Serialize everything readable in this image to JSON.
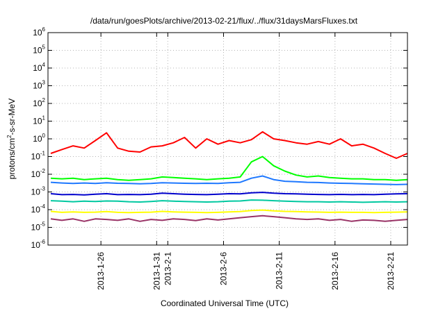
{
  "chart_data": {
    "type": "line",
    "title": "/data/run/goesPlots/archive/2013-02-21/flux/../flux/31daysMarsFluxes.txt",
    "xlabel": "Coordinated Universal Time (UTC)",
    "ylabel": {
      "prefix": "protons/cm",
      "sup": "2",
      "suffix": "-s-sr-MeV"
    },
    "y_scale": "log",
    "ylim": [
      1e-06,
      1000000.0
    ],
    "y_ticks": [
      {
        "value": 1e-06,
        "base": "10",
        "exp": "-6"
      },
      {
        "value": 1e-05,
        "base": "10",
        "exp": "-5"
      },
      {
        "value": 0.0001,
        "base": "10",
        "exp": "-4"
      },
      {
        "value": 0.001,
        "base": "10",
        "exp": "-3"
      },
      {
        "value": 0.01,
        "base": "10",
        "exp": "-2"
      },
      {
        "value": 0.1,
        "base": "10",
        "exp": "-1"
      },
      {
        "value": 1,
        "base": "10",
        "exp": "0"
      },
      {
        "value": 10,
        "base": "10",
        "exp": "1"
      },
      {
        "value": 100,
        "base": "10",
        "exp": "2"
      },
      {
        "value": 1000,
        "base": "10",
        "exp": "3"
      },
      {
        "value": 10000,
        "base": "10",
        "exp": "4"
      },
      {
        "value": 100000,
        "base": "10",
        "exp": "5"
      },
      {
        "value": 1000000,
        "base": "10",
        "exp": "6"
      }
    ],
    "x_scale": "time",
    "xlim": [
      "2013-01-21T06:00",
      "2013-02-22T12:00"
    ],
    "x_ticks": [
      {
        "value": "2013-01-26",
        "label": "2013-1-26"
      },
      {
        "value": "2013-01-31",
        "label": "2013-1-31"
      },
      {
        "value": "2013-02-01",
        "label": "2013-2-1"
      },
      {
        "value": "2013-02-06",
        "label": "2013-2-6"
      },
      {
        "value": "2013-02-11",
        "label": "2013-2-11"
      },
      {
        "value": "2013-02-16",
        "label": "2013-2-16"
      },
      {
        "value": "2013-02-21",
        "label": "2013-2-21"
      }
    ],
    "grid": true,
    "x": [
      "2013-01-21T12:00",
      "2013-01-22T12:00",
      "2013-01-23T12:00",
      "2013-01-24T12:00",
      "2013-01-25T12:00",
      "2013-01-26T12:00",
      "2013-01-27T12:00",
      "2013-01-28T12:00",
      "2013-01-29T12:00",
      "2013-01-30T12:00",
      "2013-01-31T12:00",
      "2013-02-01T12:00",
      "2013-02-02T12:00",
      "2013-02-03T12:00",
      "2013-02-04T12:00",
      "2013-02-05T12:00",
      "2013-02-06T12:00",
      "2013-02-07T12:00",
      "2013-02-08T12:00",
      "2013-02-09T12:00",
      "2013-02-10T12:00",
      "2013-02-11T12:00",
      "2013-02-12T12:00",
      "2013-02-13T12:00",
      "2013-02-14T12:00",
      "2013-02-15T12:00",
      "2013-02-16T12:00",
      "2013-02-17T12:00",
      "2013-02-18T12:00",
      "2013-02-19T12:00",
      "2013-02-20T12:00",
      "2013-02-21T12:00",
      "2013-02-22T12:00"
    ],
    "series": [
      {
        "color": "#ff0000",
        "values": [
          0.15,
          0.25,
          0.4,
          0.3,
          0.8,
          2.2,
          0.3,
          0.2,
          0.18,
          0.35,
          0.4,
          0.6,
          1.2,
          0.3,
          1.0,
          0.5,
          0.8,
          0.6,
          0.9,
          2.5,
          1.0,
          0.8,
          0.6,
          0.5,
          0.7,
          0.5,
          1.0,
          0.4,
          0.5,
          0.3,
          0.15,
          0.08,
          0.15
        ]
      },
      {
        "color": "#00ff00",
        "values": [
          0.006,
          0.0055,
          0.006,
          0.005,
          0.0055,
          0.006,
          0.005,
          0.0045,
          0.005,
          0.0055,
          0.007,
          0.0065,
          0.006,
          0.0055,
          0.005,
          0.0055,
          0.006,
          0.007,
          0.05,
          0.1,
          0.03,
          0.015,
          0.009,
          0.007,
          0.008,
          0.0065,
          0.006,
          0.0055,
          0.0055,
          0.005,
          0.005,
          0.0045,
          0.005
        ]
      },
      {
        "color": "#1e78ff",
        "values": [
          0.0035,
          0.0032,
          0.003,
          0.0032,
          0.003,
          0.0033,
          0.0031,
          0.003,
          0.0029,
          0.003,
          0.0033,
          0.0032,
          0.0031,
          0.003,
          0.0031,
          0.003,
          0.0033,
          0.0035,
          0.006,
          0.008,
          0.005,
          0.004,
          0.0038,
          0.0035,
          0.0034,
          0.0032,
          0.0031,
          0.003,
          0.0029,
          0.0028,
          0.0027,
          0.0026,
          0.0027
        ]
      },
      {
        "color": "#0000cc",
        "values": [
          0.0008,
          0.0007,
          0.00072,
          0.00068,
          0.00075,
          0.0008,
          0.0007,
          0.00072,
          0.0007,
          0.00075,
          0.00085,
          0.0008,
          0.00075,
          0.00072,
          0.0007,
          0.00075,
          0.0008,
          0.00078,
          0.0009,
          0.00095,
          0.00085,
          0.0008,
          0.00078,
          0.00075,
          0.00072,
          0.0007,
          0.00073,
          0.0007,
          0.00072,
          0.0007,
          0.00075,
          0.00078,
          0.0008
        ]
      },
      {
        "color": "#00c8a0",
        "values": [
          0.00032,
          0.0003,
          0.00028,
          0.0003,
          0.00029,
          0.00031,
          0.0003,
          0.00028,
          0.00027,
          0.00029,
          0.00032,
          0.0003,
          0.00029,
          0.00028,
          0.00027,
          0.00028,
          0.0003,
          0.00031,
          0.00035,
          0.00034,
          0.00032,
          0.0003,
          0.00029,
          0.00028,
          0.00028,
          0.00027,
          0.00028,
          0.00027,
          0.00026,
          0.00027,
          0.00028,
          0.00027,
          0.00028
        ]
      },
      {
        "color": "#ffff00",
        "values": [
          8e-05,
          7e-05,
          7.5e-05,
          7e-05,
          7.2e-05,
          7.8e-05,
          7e-05,
          6.8e-05,
          7e-05,
          7.2e-05,
          8e-05,
          7.5e-05,
          7.2e-05,
          7e-05,
          6.8e-05,
          7e-05,
          7.5e-05,
          7.8e-05,
          9e-05,
          9.5e-05,
          8.5e-05,
          8e-05,
          7.8e-05,
          7.5e-05,
          7.3e-05,
          7e-05,
          7.2e-05,
          7e-05,
          7e-05,
          6.8e-05,
          7e-05,
          7.2e-05,
          7.5e-05
        ]
      },
      {
        "color": "#993366",
        "values": [
          3e-05,
          2.5e-05,
          3e-05,
          2.2e-05,
          3e-05,
          2.8e-05,
          2.5e-05,
          3e-05,
          2.2e-05,
          2.8e-05,
          2.5e-05,
          3e-05,
          2.8e-05,
          2.4e-05,
          3e-05,
          2.6e-05,
          3e-05,
          3.5e-05,
          4e-05,
          4.5e-05,
          4e-05,
          3.5e-05,
          3e-05,
          2.8e-05,
          3e-05,
          2.5e-05,
          2.8e-05,
          2.2e-05,
          2.6e-05,
          2.5e-05,
          2.2e-05,
          2.5e-05,
          2.8e-05
        ]
      }
    ]
  }
}
